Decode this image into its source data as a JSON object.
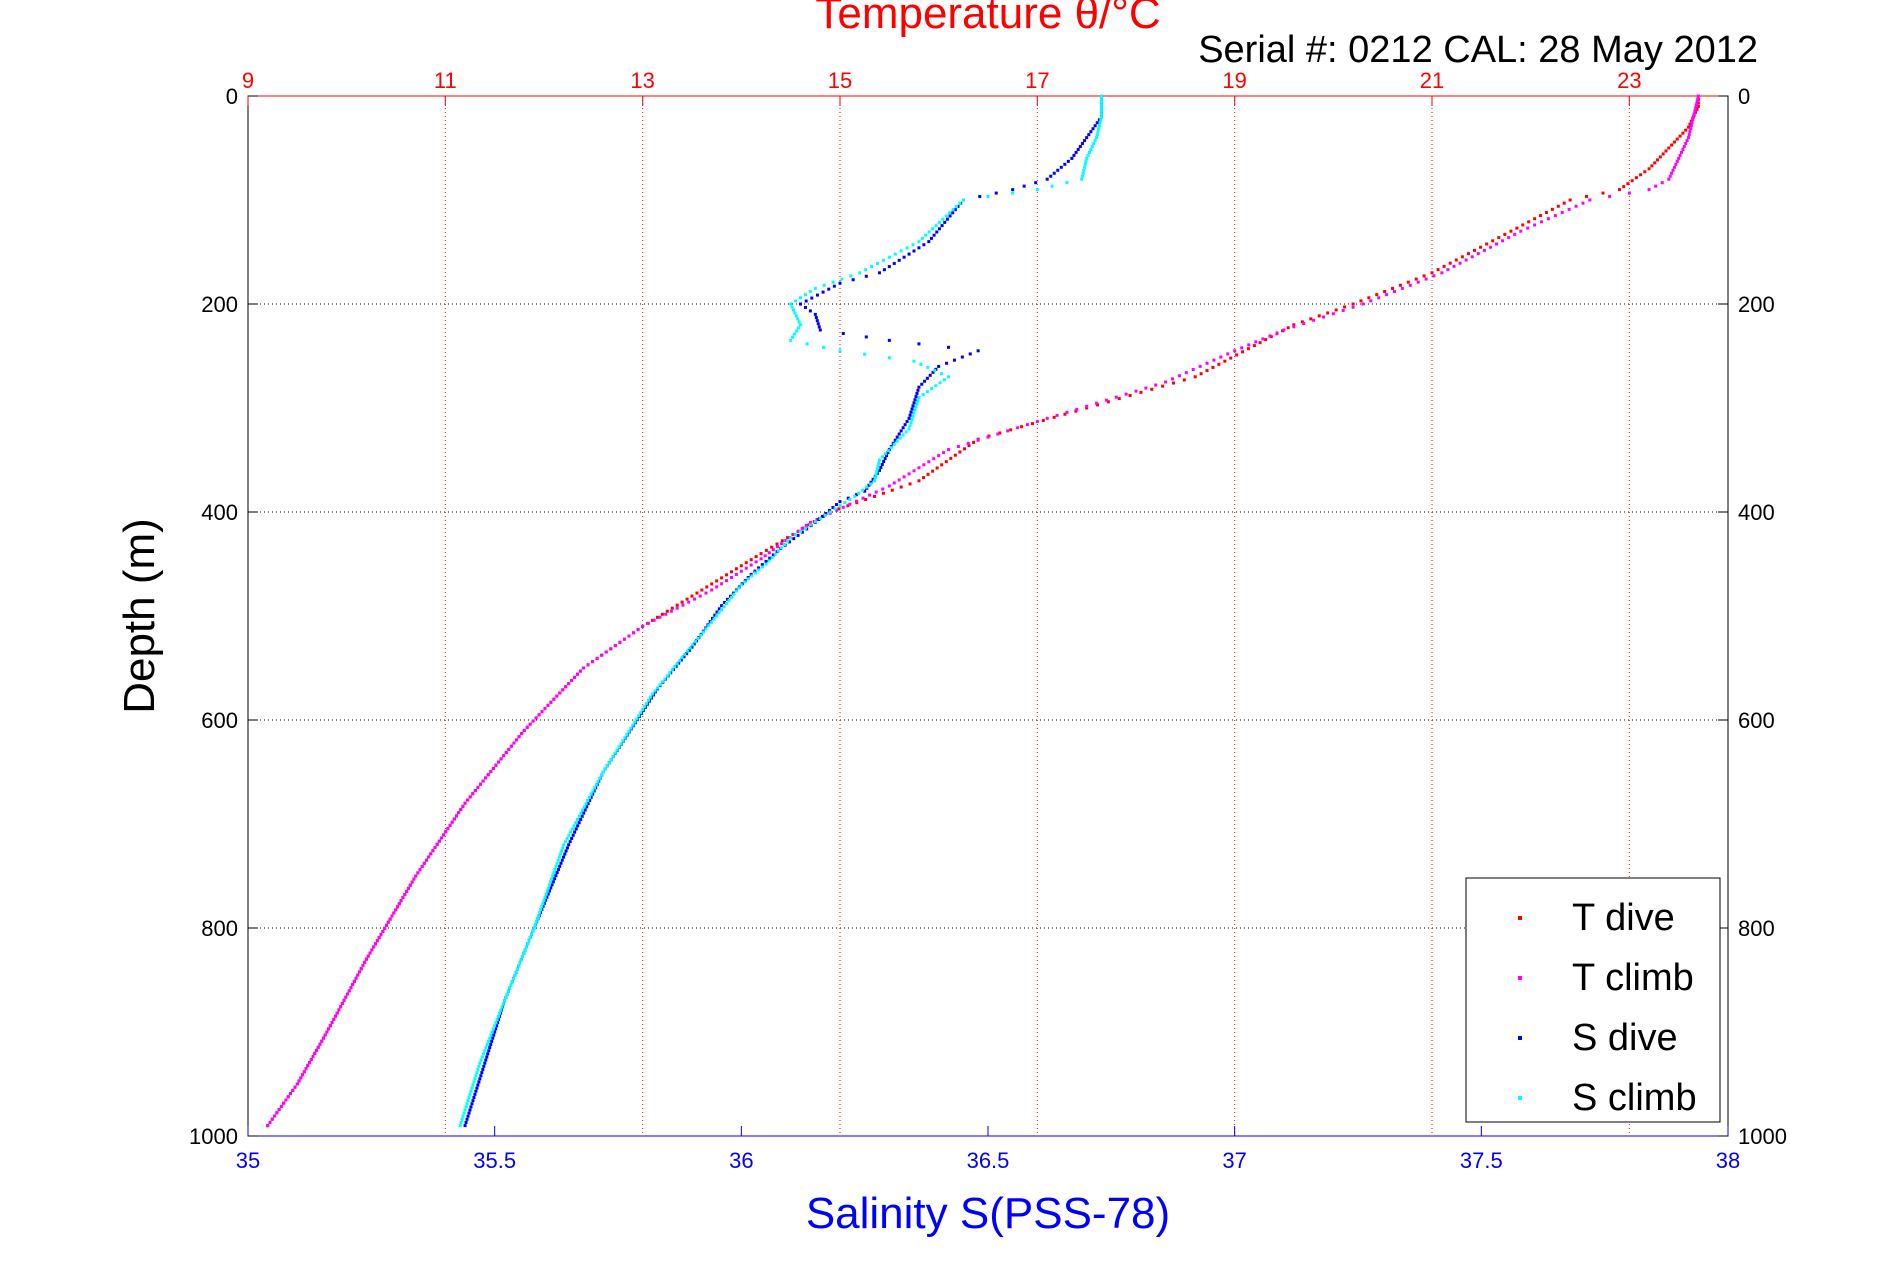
{
  "chart_data": {
    "type": "scatter",
    "title": "Temperature θ/°C",
    "subtitle": "Serial #: 0212  CAL: 28 May 2012",
    "xlabel": "Salinity S(PSS-78)",
    "ylabel": "Depth (m)",
    "x_bottom": {
      "range": [
        35,
        38
      ],
      "ticks": [
        "35",
        "35.5",
        "36",
        "36.5",
        "37",
        "37.5",
        "38"
      ]
    },
    "x_top": {
      "range": [
        9,
        24
      ],
      "ticks": [
        "9",
        "11",
        "13",
        "15",
        "17",
        "19",
        "21",
        "23"
      ]
    },
    "y": {
      "range": [
        0,
        1000
      ],
      "reversed": true,
      "ticks": [
        "0",
        "200",
        "400",
        "600",
        "800",
        "1000"
      ]
    },
    "grid": true,
    "legend": {
      "position": "bottom-right",
      "entries": [
        "T dive",
        "T climb",
        "S dive",
        "S climb"
      ]
    },
    "colors": {
      "temperature_axis": "#ff0000",
      "salinity_axis": "#0000ff",
      "t_dive": "#ff0000",
      "t_climb": "#ff00ff",
      "s_dive": "#0000ff",
      "s_climb": "#00ffff"
    },
    "series": [
      {
        "name": "T dive",
        "axis": "temperature",
        "points": [
          [
            23.7,
            0
          ],
          [
            23.7,
            10
          ],
          [
            23.6,
            30
          ],
          [
            23.4,
            50
          ],
          [
            23.2,
            70
          ],
          [
            22.9,
            90
          ],
          [
            22.4,
            100
          ],
          [
            21.8,
            130
          ],
          [
            21.0,
            170
          ],
          [
            20.2,
            200
          ],
          [
            19.6,
            220
          ],
          [
            19.2,
            240
          ],
          [
            18.6,
            270
          ],
          [
            17.5,
            300
          ],
          [
            16.4,
            330
          ],
          [
            15.8,
            370
          ],
          [
            14.9,
            400
          ],
          [
            14.2,
            440
          ],
          [
            13.6,
            475
          ],
          [
            13.0,
            510
          ],
          [
            12.4,
            550
          ],
          [
            11.8,
            610
          ],
          [
            11.2,
            680
          ],
          [
            10.7,
            750
          ],
          [
            10.2,
            830
          ],
          [
            9.8,
            900
          ],
          [
            9.5,
            950
          ],
          [
            9.2,
            990
          ]
        ]
      },
      {
        "name": "T climb",
        "axis": "temperature",
        "points": [
          [
            23.7,
            0
          ],
          [
            23.65,
            20
          ],
          [
            23.6,
            40
          ],
          [
            23.5,
            60
          ],
          [
            23.4,
            80
          ],
          [
            23.2,
            90
          ],
          [
            22.6,
            100
          ],
          [
            21.9,
            130
          ],
          [
            21.1,
            170
          ],
          [
            20.3,
            200
          ],
          [
            19.5,
            225
          ],
          [
            19.0,
            245
          ],
          [
            18.3,
            275
          ],
          [
            17.1,
            310
          ],
          [
            16.1,
            340
          ],
          [
            15.5,
            375
          ],
          [
            14.7,
            410
          ],
          [
            14.2,
            445
          ],
          [
            13.7,
            475
          ],
          [
            13.0,
            510
          ],
          [
            12.4,
            550
          ],
          [
            11.8,
            610
          ],
          [
            11.2,
            680
          ],
          [
            10.7,
            750
          ],
          [
            10.2,
            830
          ],
          [
            9.8,
            900
          ],
          [
            9.5,
            950
          ],
          [
            9.2,
            990
          ]
        ]
      },
      {
        "name": "S dive",
        "axis": "salinity",
        "points": [
          [
            36.73,
            0
          ],
          [
            36.73,
            20
          ],
          [
            36.7,
            40
          ],
          [
            36.67,
            60
          ],
          [
            36.62,
            80
          ],
          [
            36.55,
            90
          ],
          [
            36.45,
            100
          ],
          [
            36.38,
            140
          ],
          [
            36.28,
            170
          ],
          [
            36.2,
            180
          ],
          [
            36.12,
            200
          ],
          [
            36.15,
            210
          ],
          [
            36.16,
            225
          ],
          [
            36.3,
            235
          ],
          [
            36.48,
            245
          ],
          [
            36.4,
            260
          ],
          [
            36.36,
            280
          ],
          [
            36.34,
            310
          ],
          [
            36.3,
            340
          ],
          [
            36.28,
            360
          ],
          [
            36.25,
            380
          ],
          [
            36.2,
            390
          ],
          [
            36.15,
            410
          ],
          [
            36.08,
            435
          ],
          [
            36.02,
            460
          ],
          [
            35.96,
            490
          ],
          [
            35.9,
            530
          ],
          [
            35.83,
            570
          ],
          [
            35.72,
            650
          ],
          [
            35.65,
            720
          ],
          [
            35.58,
            800
          ],
          [
            35.52,
            870
          ],
          [
            35.48,
            930
          ],
          [
            35.44,
            990
          ]
        ]
      },
      {
        "name": "S climb",
        "axis": "salinity",
        "points": [
          [
            36.73,
            0
          ],
          [
            36.73,
            20
          ],
          [
            36.72,
            40
          ],
          [
            36.7,
            60
          ],
          [
            36.69,
            80
          ],
          [
            36.6,
            90
          ],
          [
            36.45,
            100
          ],
          [
            36.36,
            140
          ],
          [
            36.24,
            170
          ],
          [
            36.15,
            185
          ],
          [
            36.1,
            200
          ],
          [
            36.12,
            220
          ],
          [
            36.1,
            235
          ],
          [
            36.2,
            245
          ],
          [
            36.35,
            255
          ],
          [
            36.42,
            270
          ],
          [
            36.36,
            290
          ],
          [
            36.34,
            320
          ],
          [
            36.28,
            350
          ],
          [
            36.27,
            370
          ],
          [
            36.23,
            385
          ],
          [
            36.18,
            400
          ],
          [
            36.1,
            425
          ],
          [
            36.05,
            450
          ],
          [
            36.0,
            470
          ],
          [
            35.95,
            500
          ],
          [
            35.88,
            540
          ],
          [
            35.82,
            575
          ],
          [
            35.72,
            650
          ],
          [
            35.64,
            720
          ],
          [
            35.58,
            800
          ],
          [
            35.52,
            870
          ],
          [
            35.47,
            930
          ],
          [
            35.43,
            990
          ]
        ]
      }
    ]
  }
}
